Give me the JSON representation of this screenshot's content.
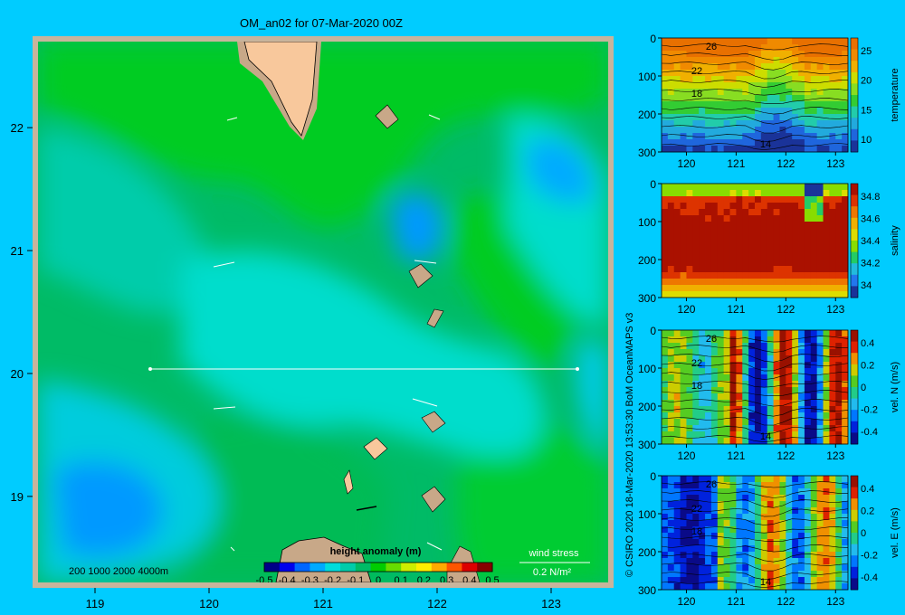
{
  "title": "OM_an02 for 07-Mar-2020 00Z",
  "credit": "© CSIRO 2020   18-Mar-2020 13:53:30 BoM OceanMAPS v3",
  "colors": {
    "background": "#00ccff",
    "land": "#f8c89c",
    "landShelf": "#c8a888",
    "frame": "#c8b49c",
    "anomaly_scale": [
      "#000088",
      "#0000ee",
      "#0066ff",
      "#00aaff",
      "#00dddd",
      "#00ccaa",
      "#00bb66",
      "#00cc00",
      "#66dd00",
      "#ccee00",
      "#ffee00",
      "#ffaa00",
      "#ff5500",
      "#dd0000",
      "#880000"
    ]
  },
  "chart_data": [
    {
      "type": "heatmap",
      "name": "map",
      "title": "OM_an02 for 07-Mar-2020 00Z",
      "xlim": [
        118.5,
        123.5
      ],
      "ylim": [
        18.3,
        22.7
      ],
      "x_ticks": [
        "119",
        "120",
        "121",
        "122",
        "123"
      ],
      "y_ticks": [
        "19",
        "20",
        "21",
        "22"
      ],
      "section_line": {
        "lat": 20,
        "lon_start": 119.5,
        "lon_end": 123.2
      },
      "depth_legend": "200  1000  2000  4000m",
      "colorbar": {
        "label": "height anomaly  (m)",
        "ticks": [
          "-0.5",
          "-0.4",
          "-0.3",
          "-0.2",
          "-0.1",
          "0",
          "0.1",
          "0.2",
          "0.3",
          "0.4",
          "0.5"
        ],
        "range": [
          -0.5,
          0.5
        ]
      },
      "wind_stress_label": "wind stress",
      "wind_stress_scale": "0.2 N/m²"
    },
    {
      "type": "heatmap",
      "name": "temperature",
      "colorbar_label": "temperature",
      "colorbar_ticks": [
        "25",
        "20",
        "15",
        "10"
      ],
      "range": [
        8,
        29
      ],
      "contour_labels": [
        "26",
        "22",
        "18",
        "14"
      ],
      "y_ticks": [
        "0",
        "100",
        "200",
        "300"
      ],
      "x_ticks": [
        "120",
        "121",
        "122",
        "123"
      ]
    },
    {
      "type": "heatmap",
      "name": "salinity",
      "colorbar_label": "salinity",
      "colorbar_ticks": [
        "34.8",
        "34.6",
        "34.4",
        "34.2",
        "34"
      ],
      "range": [
        33.9,
        34.9
      ],
      "y_ticks": [
        "0",
        "100",
        "200",
        "300"
      ],
      "x_ticks": [
        "120",
        "121",
        "122",
        "123"
      ]
    },
    {
      "type": "heatmap",
      "name": "vel_n",
      "colorbar_label": "vel. N  (m/s)",
      "colorbar_ticks": [
        "0.4",
        "0.2",
        "0",
        "-0.2",
        "-0.4"
      ],
      "range": [
        -0.45,
        0.45
      ],
      "contour_labels": [
        "26",
        "22",
        "18",
        "14"
      ],
      "y_ticks": [
        "0",
        "100",
        "200",
        "300"
      ],
      "x_ticks": [
        "120",
        "121",
        "122",
        "123"
      ]
    },
    {
      "type": "heatmap",
      "name": "vel_e",
      "colorbar_label": "vel. E  (m/s)",
      "colorbar_ticks": [
        "0.4",
        "0.2",
        "0",
        "-0.2",
        "-0.4"
      ],
      "range": [
        -0.45,
        0.45
      ],
      "contour_labels": [
        "26",
        "22",
        "18",
        "14"
      ],
      "y_ticks": [
        "0",
        "100",
        "200",
        "300"
      ],
      "x_ticks": [
        "120",
        "121",
        "122",
        "123"
      ]
    }
  ]
}
